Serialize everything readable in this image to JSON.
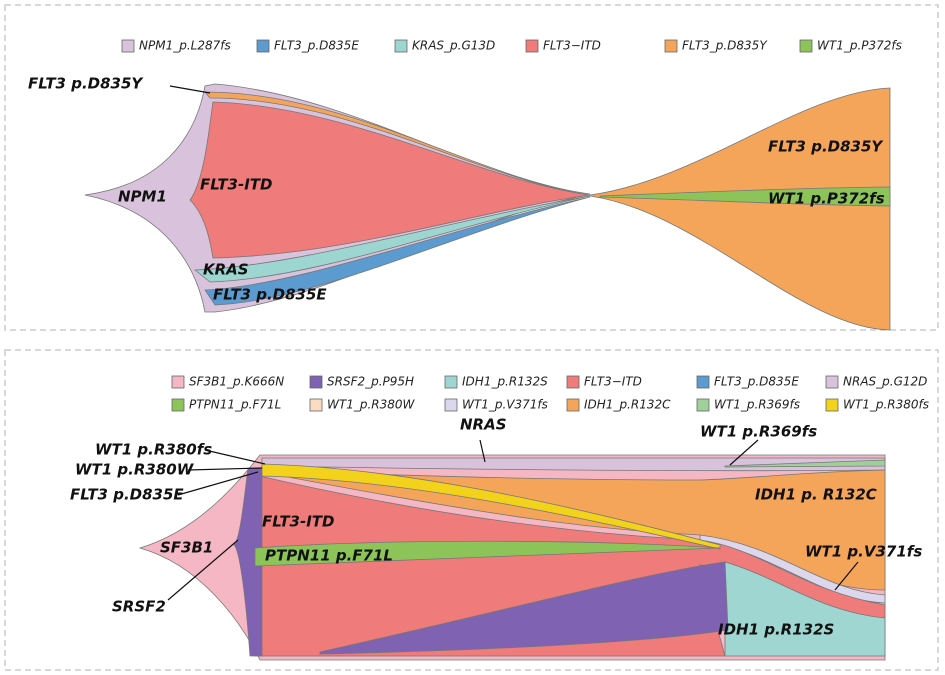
{
  "panel_top": {
    "legend": [
      {
        "label": "NPM1_p.L287fs",
        "color": "#d9c3dc"
      },
      {
        "label": "FLT3_p.D835E",
        "color": "#5b9bd0"
      },
      {
        "label": "KRAS_p.G13D",
        "color": "#9dd6d0"
      },
      {
        "label": "FLT3−ITD",
        "color": "#ef7b7b"
      },
      {
        "label": "FLT3_p.D835Y",
        "color": "#f4a55a"
      },
      {
        "label": "WT1_p.P372fs",
        "color": "#8dc45a"
      }
    ],
    "annotations": [
      "FLT3 p.D835Y",
      "NPM1",
      "FLT3-ITD",
      "KRAS",
      "FLT3 p.D835E",
      "FLT3 p.D835Y",
      "WT1 p.P372fs"
    ]
  },
  "panel_bottom": {
    "legend": [
      {
        "label": "SF3B1_p.K666N",
        "color": "#f4b7c3"
      },
      {
        "label": "SRSF2_p.P95H",
        "color": "#7f62b1"
      },
      {
        "label": "IDH1_p.R132S",
        "color": "#9fd6d1"
      },
      {
        "label": "FLT3−ITD",
        "color": "#ef7b7b"
      },
      {
        "label": "FLT3_p.D835E",
        "color": "#5b9bd0"
      },
      {
        "label": "NRAS_p.G12D",
        "color": "#d9c3dc"
      },
      {
        "label": "PTPN11_p.F71L",
        "color": "#8dc45a"
      },
      {
        "label": "WT1_p.R380W",
        "color": "#f9dcc2"
      },
      {
        "label": "WT1_p.V371fs",
        "color": "#dcd7ec"
      },
      {
        "label": "IDH1_p.R132C",
        "color": "#f4a55a"
      },
      {
        "label": "WT1_p.R369fs",
        "color": "#9fd09a"
      },
      {
        "label": "WT1_p.R380fs",
        "color": "#f2d21b"
      }
    ],
    "annotations": [
      "WT1 p.R380fs",
      "WT1 p.R380W",
      "FLT3 p.D835E",
      "NRAS",
      "WT1 p.R369fs",
      "IDH1 p. R132C",
      "FLT3-ITD",
      "SF3B1",
      "PTPN11 p.F71L",
      "WT1 p.V371fs",
      "SRSF2",
      "IDH1 p.R132S"
    ]
  }
}
